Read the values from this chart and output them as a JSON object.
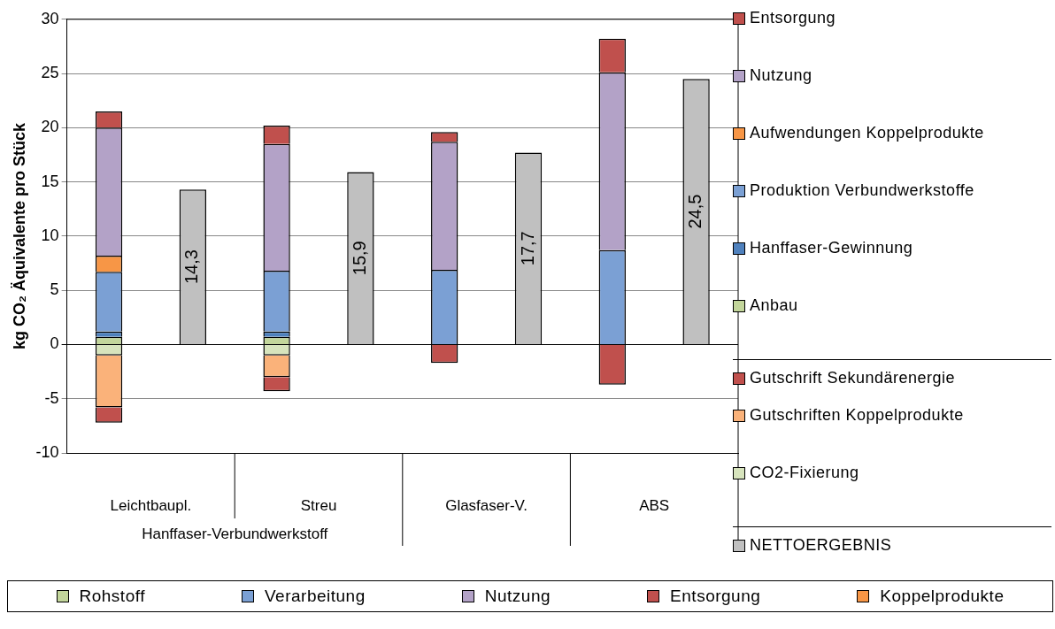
{
  "chart_data": {
    "type": "bar",
    "stacked": true,
    "ylabel": "kg CO₂ Äquivalente pro Stück",
    "categories": [
      "Leichtbaupl.",
      null,
      "Streu",
      null,
      "Glasfaser-V.",
      null,
      "ABS",
      null
    ],
    "ylim": [
      -10,
      30
    ],
    "yticks": [
      -10,
      -5,
      0,
      5,
      10,
      15,
      20,
      25,
      30
    ],
    "grid": "y",
    "legend": "right",
    "series": [
      {
        "name": "CO2-Fixierung",
        "color": "#d7e4bd",
        "values": [
          -1.0,
          null,
          -1.0,
          null,
          null,
          null,
          null,
          null
        ]
      },
      {
        "name": "Gutschriften Koppelprodukte",
        "color": "#fab27a",
        "values": [
          -4.8,
          null,
          -2.0,
          null,
          null,
          null,
          null,
          null
        ]
      },
      {
        "name": "Gutschrift Sekundärenergie",
        "color": "#c0504d",
        "values": [
          -1.4,
          null,
          -1.3,
          null,
          -1.7,
          null,
          -3.7,
          null
        ]
      },
      {
        "name": "Anbau",
        "color": "#c3d69b",
        "values": [
          0.7,
          null,
          0.7,
          null,
          null,
          null,
          null,
          null
        ]
      },
      {
        "name": "Hanffaser-Gewinnung",
        "color": "#4f81bd",
        "values": [
          0.5,
          null,
          0.5,
          null,
          null,
          null,
          null,
          null
        ]
      },
      {
        "name": "Produktion Verbundwerkstoffe",
        "color": "#7ba0d4",
        "values": [
          5.5,
          null,
          5.6,
          null,
          6.9,
          null,
          8.7,
          null
        ]
      },
      {
        "name": "Aufwendungen Koppelprodukte",
        "color": "#f79646",
        "values": [
          1.5,
          null,
          null,
          null,
          null,
          null,
          null,
          null
        ]
      },
      {
        "name": "Nutzung",
        "color": "#b3a2c7",
        "values": [
          11.8,
          null,
          11.7,
          null,
          11.8,
          null,
          16.4,
          null
        ]
      },
      {
        "name": "Entsorgung",
        "color": "#c0504d",
        "values": [
          1.5,
          null,
          1.7,
          null,
          0.9,
          null,
          3.1,
          null
        ]
      },
      {
        "name": "NETTOERGEBNIS",
        "color": "#c0c0c0",
        "values": [
          null,
          14.3,
          null,
          15.9,
          null,
          17.7,
          null,
          24.5
        ],
        "value_labels": [
          null,
          "14,3",
          null,
          "15,9",
          null,
          "17,7",
          null,
          "24,5"
        ]
      }
    ],
    "annotations": [
      "Hanffaser-Verbundwerkstoff",
      "Rohstoff",
      "Verarbeitung",
      "Nutzung",
      "Entsorgung",
      "Koppelprodukte"
    ]
  }
}
